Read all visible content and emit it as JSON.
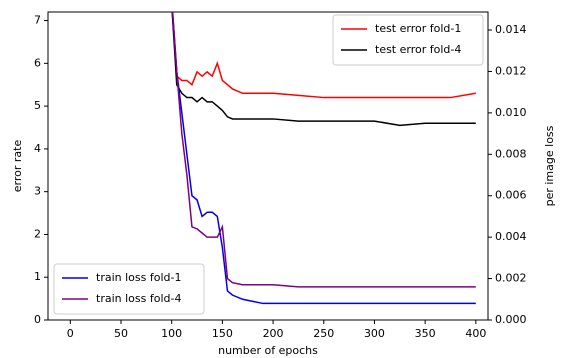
{
  "chart_data": {
    "type": "line",
    "x_label": "number of epochs",
    "y_label": "error rate",
    "y2_label": "per image loss",
    "x": [
      100,
      105,
      110,
      115,
      120,
      125,
      130,
      135,
      140,
      145,
      150,
      155,
      160,
      170,
      180,
      190,
      200,
      225,
      250,
      275,
      300,
      325,
      350,
      375,
      400
    ],
    "xlim": [
      -22,
      412
    ],
    "xticks": [
      0,
      50,
      100,
      150,
      200,
      250,
      300,
      350,
      400
    ],
    "ylim": [
      0,
      7.2
    ],
    "yticks": [
      0,
      1,
      2,
      3,
      4,
      5,
      6,
      7
    ],
    "y2lim": [
      0,
      0.01487
    ],
    "y2ticks": [
      {
        "value": 0,
        "label": "0.000"
      },
      {
        "value": 0.002,
        "label": "0.002"
      },
      {
        "value": 0.004,
        "label": "0.004"
      },
      {
        "value": 0.006,
        "label": "0.006"
      },
      {
        "value": 0.008,
        "label": "0.008"
      },
      {
        "value": 0.01,
        "label": "0.010"
      },
      {
        "value": 0.012,
        "label": "0.012"
      },
      {
        "value": 0.014,
        "label": "0.014"
      }
    ],
    "legend_y": "upper right",
    "legend_y2": "lower left",
    "series": [
      {
        "name": "test error fold-1",
        "color": "#ff0000",
        "axis": "y",
        "values": [
          7.4,
          5.7,
          5.6,
          5.6,
          5.5,
          5.8,
          5.7,
          5.8,
          5.7,
          6.0,
          5.6,
          5.5,
          5.4,
          5.3,
          5.3,
          5.3,
          5.3,
          5.25,
          5.2,
          5.2,
          5.2,
          5.2,
          5.2,
          5.2,
          5.3
        ]
      },
      {
        "name": "test error fold-4",
        "color": "#000000",
        "axis": "y",
        "values": [
          7.4,
          5.5,
          5.3,
          5.2,
          5.2,
          5.1,
          5.2,
          5.1,
          5.1,
          5.0,
          4.9,
          4.75,
          4.7,
          4.7,
          4.7,
          4.7,
          4.7,
          4.65,
          4.65,
          4.65,
          4.65,
          4.55,
          4.6,
          4.6,
          4.6
        ]
      },
      {
        "name": "train loss fold-1",
        "color": "#0000ee",
        "axis": "y2",
        "values": [
          0.0155,
          0.012,
          0.01,
          0.008,
          0.006,
          0.0058,
          0.005,
          0.0052,
          0.0052,
          0.005,
          0.0035,
          0.0014,
          0.0012,
          0.001,
          0.0009,
          0.0008,
          0.0008,
          0.0008,
          0.0008,
          0.0008,
          0.0008,
          0.0008,
          0.0008,
          0.0008,
          0.0008
        ]
      },
      {
        "name": "train loss fold-4",
        "color": "#800080",
        "axis": "y2",
        "values": [
          0.0155,
          0.012,
          0.009,
          0.007,
          0.0045,
          0.0044,
          0.0042,
          0.004,
          0.004,
          0.004,
          0.0045,
          0.002,
          0.0018,
          0.0017,
          0.0017,
          0.0017,
          0.0017,
          0.0016,
          0.0016,
          0.0016,
          0.0016,
          0.0016,
          0.0016,
          0.0016,
          0.0016
        ]
      }
    ]
  }
}
